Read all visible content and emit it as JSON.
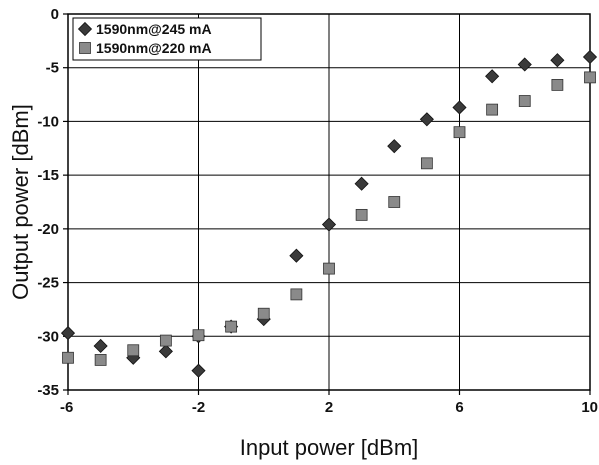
{
  "chart_data": {
    "type": "scatter",
    "xlabel": "Input power [dBm]",
    "ylabel": "Output power [dBm]",
    "xlim": [
      -6,
      10
    ],
    "ylim": [
      -35,
      0
    ],
    "x_ticks": [
      "-6",
      "-2",
      "2",
      "6",
      "10"
    ],
    "y_ticks": [
      "0",
      "-5",
      "-10",
      "-15",
      "-20",
      "-25",
      "-30",
      "-35"
    ],
    "grid": true,
    "legend_position": "top-left",
    "series": [
      {
        "name": "1590nm@245 mA",
        "marker": "diamond",
        "color": "#3a3a3a",
        "x": [
          -6,
          -5,
          -4,
          -3,
          -2,
          -2,
          -1,
          0,
          1,
          2,
          3,
          4,
          5,
          6,
          7,
          8,
          9,
          10
        ],
        "y": [
          -29.7,
          -30.9,
          -32.0,
          -31.4,
          -33.2,
          -30.0,
          -29.1,
          -28.4,
          -22.5,
          -19.6,
          -15.8,
          -12.3,
          -9.8,
          -8.7,
          -5.8,
          -4.7,
          -4.3,
          -4.0
        ]
      },
      {
        "name": "1590nm@220 mA",
        "marker": "square",
        "color": "#8a8a8a",
        "x": [
          -6,
          -5,
          -4,
          -3,
          -2,
          -1,
          0,
          1,
          2,
          3,
          4,
          5,
          6,
          7,
          8,
          9,
          10
        ],
        "y": [
          -32.0,
          -32.2,
          -31.3,
          -30.4,
          -29.9,
          -29.1,
          -27.9,
          -26.1,
          -23.7,
          -18.7,
          -17.5,
          -13.9,
          -11.0,
          -8.9,
          -8.1,
          -6.6,
          -5.9
        ]
      }
    ]
  }
}
